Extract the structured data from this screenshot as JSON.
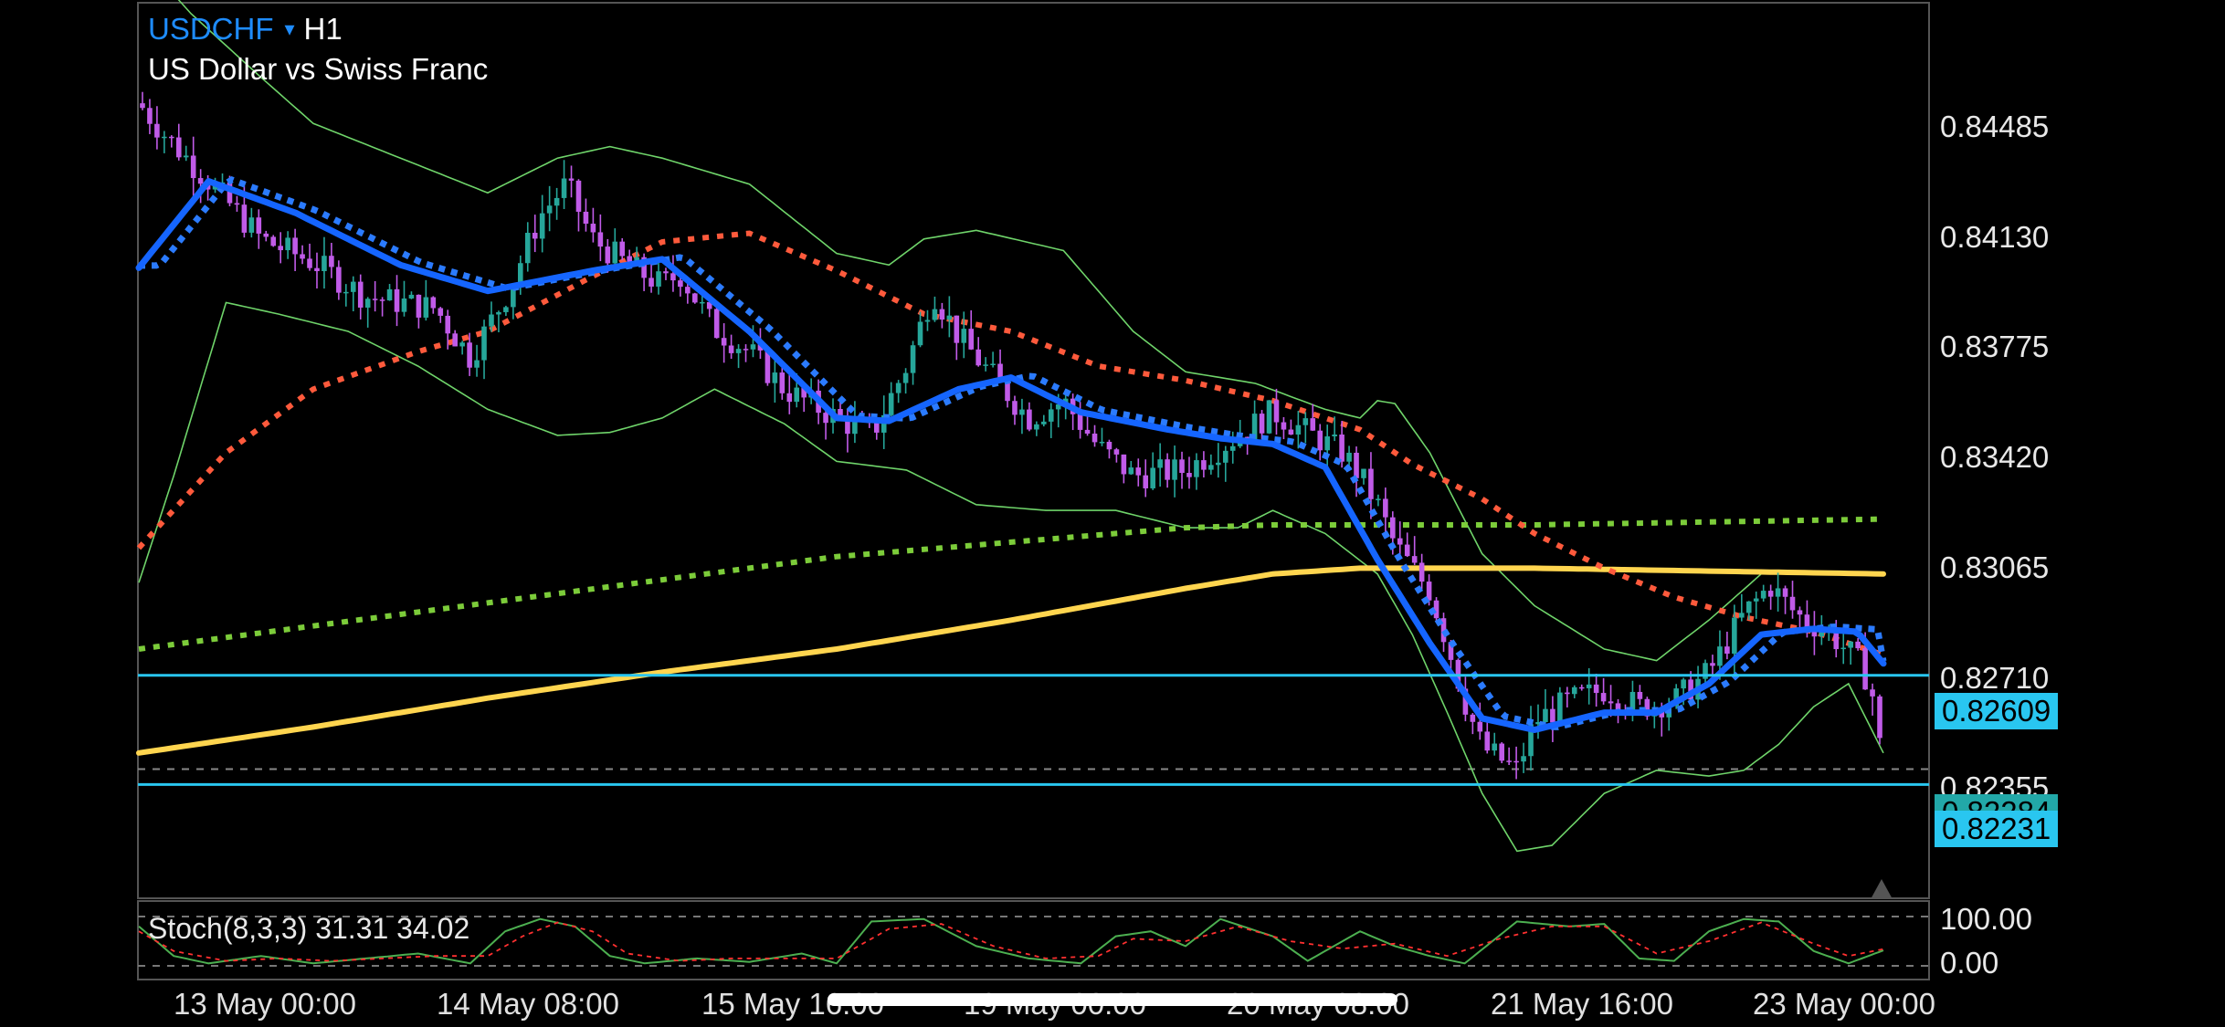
{
  "header": {
    "symbol": "USDCHF",
    "dropdown_glyph": "▾",
    "timeframe": "H1",
    "description": "US Dollar vs Swiss Franc"
  },
  "price_axis": {
    "labels": [
      "0.84485",
      "0.84130",
      "0.83775",
      "0.83420",
      "0.83065",
      "0.82710",
      "0.82355"
    ],
    "range": [
      0.8184,
      0.84935
    ]
  },
  "horizontal_lines": [
    {
      "price_label": "0.82609",
      "price": 0.82609,
      "color": "#29c6f0"
    },
    {
      "price_label": "0.82231",
      "price": 0.82231,
      "color": "#29c6f0"
    }
  ],
  "current_price": {
    "label": "0.82284",
    "price": 0.82284
  },
  "time_axis": {
    "labels": [
      "13 May 00:00",
      "14 May 08:00",
      "15 May 16:00",
      "19 May 00:00",
      "20 May 08:00",
      "21 May 16:00",
      "23 May 00:00"
    ]
  },
  "stochastic": {
    "label": "Stoch(8,3,3) 31.31 34.02",
    "levels": [
      "100.00",
      "0.00"
    ],
    "main_value": 31.31,
    "signal_value": 34.02
  },
  "colors": {
    "background": "#000000",
    "bull_candle": "#26a69a",
    "bear_candle": "#c05be8",
    "ma_fast": "#1565ff",
    "ma_fast_dotted": "#2b7bff",
    "ma_medium": "#ff5a3c",
    "ma_long": "#7ccc3a",
    "ma_yellow": "#ffd54f",
    "bollinger": "#6fd46a",
    "hline": "#29c6f0",
    "stoch_main": "#4caf50",
    "stoch_signal": "#ff3030"
  },
  "chart_data": {
    "type": "candlestick",
    "symbol": "USDCHF",
    "timeframe": "H1",
    "ylim": [
      0.8184,
      0.84935
    ],
    "price_path": [
      [
        0.0,
        0.8459
      ],
      [
        0.015,
        0.8448
      ],
      [
        0.04,
        0.8432
      ],
      [
        0.07,
        0.8412
      ],
      [
        0.1,
        0.8404
      ],
      [
        0.13,
        0.8392
      ],
      [
        0.17,
        0.8388
      ],
      [
        0.19,
        0.8371
      ],
      [
        0.21,
        0.8392
      ],
      [
        0.23,
        0.842
      ],
      [
        0.245,
        0.8431
      ],
      [
        0.26,
        0.8412
      ],
      [
        0.28,
        0.8403
      ],
      [
        0.3,
        0.8396
      ],
      [
        0.31,
        0.84
      ],
      [
        0.33,
        0.8381
      ],
      [
        0.35,
        0.8373
      ],
      [
        0.37,
        0.836
      ],
      [
        0.4,
        0.835
      ],
      [
        0.42,
        0.8344
      ],
      [
        0.44,
        0.8368
      ],
      [
        0.455,
        0.8394
      ],
      [
        0.47,
        0.8378
      ],
      [
        0.49,
        0.8364
      ],
      [
        0.51,
        0.835
      ],
      [
        0.53,
        0.8356
      ],
      [
        0.55,
        0.834
      ],
      [
        0.57,
        0.833
      ],
      [
        0.6,
        0.8332
      ],
      [
        0.63,
        0.8344
      ],
      [
        0.65,
        0.8352
      ],
      [
        0.67,
        0.8345
      ],
      [
        0.69,
        0.8338
      ],
      [
        0.7,
        0.833
      ],
      [
        0.71,
        0.832
      ],
      [
        0.72,
        0.8306
      ],
      [
        0.74,
        0.829
      ],
      [
        0.75,
        0.8272
      ],
      [
        0.76,
        0.8252
      ],
      [
        0.77,
        0.8236
      ],
      [
        0.79,
        0.8228
      ],
      [
        0.8,
        0.8245
      ],
      [
        0.82,
        0.8252
      ],
      [
        0.84,
        0.8256
      ],
      [
        0.86,
        0.825
      ],
      [
        0.88,
        0.8252
      ],
      [
        0.9,
        0.8262
      ],
      [
        0.92,
        0.8282
      ],
      [
        0.935,
        0.8292
      ],
      [
        0.95,
        0.8282
      ],
      [
        0.97,
        0.8275
      ],
      [
        0.985,
        0.8266
      ],
      [
        0.993,
        0.8257
      ],
      [
        1.0,
        0.8228
      ]
    ],
    "indicators": {
      "ma_fast": [
        [
          0.0,
          0.8402
        ],
        [
          0.04,
          0.8432
        ],
        [
          0.09,
          0.8421
        ],
        [
          0.15,
          0.8403
        ],
        [
          0.2,
          0.8394
        ],
        [
          0.26,
          0.8401
        ],
        [
          0.3,
          0.8405
        ],
        [
          0.35,
          0.838
        ],
        [
          0.4,
          0.835
        ],
        [
          0.43,
          0.8349
        ],
        [
          0.47,
          0.836
        ],
        [
          0.5,
          0.8364
        ],
        [
          0.54,
          0.8352
        ],
        [
          0.59,
          0.8346
        ],
        [
          0.62,
          0.8343
        ],
        [
          0.65,
          0.8341
        ],
        [
          0.68,
          0.8333
        ],
        [
          0.71,
          0.8301
        ],
        [
          0.74,
          0.8272
        ],
        [
          0.77,
          0.8246
        ],
        [
          0.8,
          0.8242
        ],
        [
          0.84,
          0.8248
        ],
        [
          0.87,
          0.8248
        ],
        [
          0.9,
          0.8258
        ],
        [
          0.93,
          0.8275
        ],
        [
          0.96,
          0.8277
        ],
        [
          0.985,
          0.8276
        ],
        [
          1.0,
          0.8265
        ]
      ],
      "ma_medium": [
        [
          0.0,
          0.8305
        ],
        [
          0.05,
          0.8338
        ],
        [
          0.1,
          0.836
        ],
        [
          0.16,
          0.8373
        ],
        [
          0.2,
          0.838
        ],
        [
          0.26,
          0.8399
        ],
        [
          0.3,
          0.8411
        ],
        [
          0.35,
          0.8414
        ],
        [
          0.4,
          0.8401
        ],
        [
          0.45,
          0.8386
        ],
        [
          0.5,
          0.838
        ],
        [
          0.55,
          0.8368
        ],
        [
          0.6,
          0.8363
        ],
        [
          0.65,
          0.8356
        ],
        [
          0.7,
          0.8346
        ],
        [
          0.73,
          0.8334
        ],
        [
          0.77,
          0.8322
        ],
        [
          0.8,
          0.831
        ],
        [
          0.84,
          0.8298
        ],
        [
          0.88,
          0.8288
        ],
        [
          0.92,
          0.8281
        ],
        [
          0.96,
          0.8276
        ],
        [
          1.0,
          0.8268
        ]
      ],
      "ma_long": [
        [
          0.0,
          0.827
        ],
        [
          0.1,
          0.8278
        ],
        [
          0.2,
          0.8286
        ],
        [
          0.3,
          0.8294
        ],
        [
          0.4,
          0.8302
        ],
        [
          0.5,
          0.8307
        ],
        [
          0.6,
          0.8312
        ],
        [
          0.65,
          0.8313
        ],
        [
          0.7,
          0.8313
        ],
        [
          0.8,
          0.8313
        ],
        [
          0.9,
          0.8314
        ],
        [
          1.0,
          0.8315
        ]
      ],
      "ma_yellow": [
        [
          0.0,
          0.8234
        ],
        [
          0.1,
          0.8243
        ],
        [
          0.2,
          0.8253
        ],
        [
          0.3,
          0.8262
        ],
        [
          0.4,
          0.827
        ],
        [
          0.5,
          0.828
        ],
        [
          0.6,
          0.8291
        ],
        [
          0.65,
          0.8296
        ],
        [
          0.7,
          0.8298
        ],
        [
          0.8,
          0.8298
        ],
        [
          0.9,
          0.8297
        ],
        [
          1.0,
          0.8296
        ]
      ],
      "bb_upper": [
        [
          0.0,
          0.851
        ],
        [
          0.03,
          0.849
        ],
        [
          0.07,
          0.8468
        ],
        [
          0.1,
          0.8452
        ],
        [
          0.15,
          0.844
        ],
        [
          0.2,
          0.8428
        ],
        [
          0.24,
          0.844
        ],
        [
          0.27,
          0.8444
        ],
        [
          0.3,
          0.844
        ],
        [
          0.35,
          0.8431
        ],
        [
          0.4,
          0.8407
        ],
        [
          0.43,
          0.8403
        ],
        [
          0.45,
          0.8412
        ],
        [
          0.48,
          0.8415
        ],
        [
          0.53,
          0.8408
        ],
        [
          0.57,
          0.838
        ],
        [
          0.6,
          0.8366
        ],
        [
          0.64,
          0.8362
        ],
        [
          0.68,
          0.8353
        ],
        [
          0.7,
          0.835
        ],
        [
          0.71,
          0.8356
        ],
        [
          0.72,
          0.8355
        ],
        [
          0.74,
          0.8338
        ],
        [
          0.77,
          0.8303
        ],
        [
          0.8,
          0.8285
        ],
        [
          0.84,
          0.827
        ],
        [
          0.87,
          0.8266
        ],
        [
          0.9,
          0.828
        ],
        [
          0.93,
          0.8296
        ],
        [
          0.96,
          0.8296
        ],
        [
          1.0,
          0.8296
        ]
      ],
      "bb_lower": [
        [
          0.0,
          0.8293
        ],
        [
          0.02,
          0.833
        ],
        [
          0.05,
          0.839
        ],
        [
          0.08,
          0.8386
        ],
        [
          0.12,
          0.838
        ],
        [
          0.16,
          0.8368
        ],
        [
          0.2,
          0.8353
        ],
        [
          0.24,
          0.8344
        ],
        [
          0.27,
          0.8345
        ],
        [
          0.3,
          0.835
        ],
        [
          0.33,
          0.836
        ],
        [
          0.37,
          0.8348
        ],
        [
          0.4,
          0.8335
        ],
        [
          0.44,
          0.8332
        ],
        [
          0.48,
          0.832
        ],
        [
          0.52,
          0.8318
        ],
        [
          0.56,
          0.8318
        ],
        [
          0.6,
          0.8312
        ],
        [
          0.63,
          0.8312
        ],
        [
          0.65,
          0.8318
        ],
        [
          0.68,
          0.831
        ],
        [
          0.71,
          0.8296
        ],
        [
          0.73,
          0.8275
        ],
        [
          0.75,
          0.8248
        ],
        [
          0.77,
          0.822
        ],
        [
          0.79,
          0.82
        ],
        [
          0.81,
          0.8202
        ],
        [
          0.84,
          0.822
        ],
        [
          0.87,
          0.8228
        ],
        [
          0.9,
          0.8226
        ],
        [
          0.92,
          0.8228
        ],
        [
          0.94,
          0.8237
        ],
        [
          0.96,
          0.825
        ],
        [
          0.98,
          0.8258
        ],
        [
          1.0,
          0.8234
        ]
      ],
      "stoch_main": [
        [
          0.0,
          80
        ],
        [
          0.02,
          20
        ],
        [
          0.04,
          5
        ],
        [
          0.07,
          20
        ],
        [
          0.1,
          5
        ],
        [
          0.13,
          15
        ],
        [
          0.16,
          25
        ],
        [
          0.19,
          5
        ],
        [
          0.21,
          70
        ],
        [
          0.23,
          95
        ],
        [
          0.25,
          80
        ],
        [
          0.27,
          20
        ],
        [
          0.29,
          5
        ],
        [
          0.32,
          15
        ],
        [
          0.35,
          8
        ],
        [
          0.38,
          25
        ],
        [
          0.4,
          5
        ],
        [
          0.42,
          90
        ],
        [
          0.45,
          95
        ],
        [
          0.48,
          40
        ],
        [
          0.51,
          15
        ],
        [
          0.54,
          5
        ],
        [
          0.56,
          60
        ],
        [
          0.58,
          70
        ],
        [
          0.6,
          40
        ],
        [
          0.62,
          95
        ],
        [
          0.65,
          60
        ],
        [
          0.67,
          10
        ],
        [
          0.7,
          70
        ],
        [
          0.72,
          40
        ],
        [
          0.74,
          20
        ],
        [
          0.76,
          5
        ],
        [
          0.79,
          90
        ],
        [
          0.82,
          80
        ],
        [
          0.84,
          85
        ],
        [
          0.86,
          15
        ],
        [
          0.88,
          10
        ],
        [
          0.9,
          70
        ],
        [
          0.92,
          95
        ],
        [
          0.94,
          90
        ],
        [
          0.96,
          30
        ],
        [
          0.98,
          5
        ],
        [
          1.0,
          31.31
        ]
      ],
      "stoch_signal": [
        [
          0.0,
          70
        ],
        [
          0.02,
          30
        ],
        [
          0.05,
          10
        ],
        [
          0.08,
          15
        ],
        [
          0.11,
          10
        ],
        [
          0.14,
          15
        ],
        [
          0.17,
          20
        ],
        [
          0.2,
          20
        ],
        [
          0.22,
          60
        ],
        [
          0.24,
          88
        ],
        [
          0.26,
          70
        ],
        [
          0.28,
          25
        ],
        [
          0.31,
          10
        ],
        [
          0.34,
          15
        ],
        [
          0.37,
          15
        ],
        [
          0.4,
          15
        ],
        [
          0.43,
          75
        ],
        [
          0.46,
          85
        ],
        [
          0.49,
          40
        ],
        [
          0.52,
          15
        ],
        [
          0.55,
          20
        ],
        [
          0.57,
          55
        ],
        [
          0.6,
          50
        ],
        [
          0.63,
          80
        ],
        [
          0.66,
          50
        ],
        [
          0.69,
          35
        ],
        [
          0.72,
          45
        ],
        [
          0.75,
          20
        ],
        [
          0.78,
          55
        ],
        [
          0.81,
          80
        ],
        [
          0.84,
          80
        ],
        [
          0.87,
          25
        ],
        [
          0.9,
          50
        ],
        [
          0.93,
          88
        ],
        [
          0.96,
          45
        ],
        [
          0.98,
          20
        ],
        [
          1.0,
          34.02
        ]
      ]
    }
  }
}
